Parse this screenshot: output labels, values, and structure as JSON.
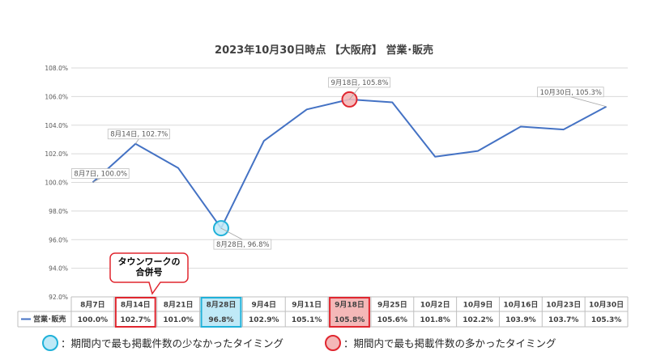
{
  "chart_data": {
    "type": "line",
    "title": "2023年10月30日時点 【大阪府】 営業･販売",
    "ylim": [
      92.0,
      108.0
    ],
    "yticks": [
      "92.0%",
      "94.0%",
      "96.0%",
      "98.0%",
      "100.0%",
      "102.0%",
      "104.0%",
      "106.0%",
      "108.0%"
    ],
    "ytick_values": [
      92,
      94,
      96,
      98,
      100,
      102,
      104,
      106,
      108
    ],
    "grid": true,
    "categories": [
      "8月7日",
      "8月14日",
      "8月21日",
      "8月28日",
      "9月4日",
      "9月11日",
      "9月18日",
      "9月25日",
      "10月2日",
      "10月9日",
      "10月16日",
      "10月23日",
      "10月30日"
    ],
    "series": [
      {
        "name": "営業･販売",
        "color": "#4472c4",
        "values": [
          100.0,
          102.7,
          101.0,
          96.8,
          102.9,
          105.1,
          105.8,
          105.6,
          101.8,
          102.2,
          103.9,
          103.7,
          105.3
        ],
        "value_labels": [
          "100.0%",
          "102.7%",
          "101.0%",
          "96.8%",
          "102.9%",
          "105.1%",
          "105.8%",
          "105.6%",
          "101.8%",
          "102.2%",
          "103.9%",
          "103.7%",
          "105.3%"
        ]
      }
    ],
    "data_labels": [
      {
        "index": 0,
        "text": "8月7日, 100.0%"
      },
      {
        "index": 1,
        "text": "8月14日, 102.7%"
      },
      {
        "index": 3,
        "text": "8月28日, 96.8%"
      },
      {
        "index": 6,
        "text": "9月18日, 105.8%"
      },
      {
        "index": 12,
        "text": "10月30日, 105.3%"
      }
    ],
    "highlight_min_index": 3,
    "highlight_max_index": 6,
    "highlight_box_index": 1,
    "colors": {
      "min_fill": "#bfe9f7",
      "min_stroke": "#1fb1d9",
      "max_fill": "#f4b8b8",
      "max_stroke": "#e0262f",
      "box_stroke": "#e0262f"
    },
    "callout": {
      "lines": [
        "タウンワークの",
        "合併号"
      ]
    },
    "legend": [
      {
        "kind": "min",
        "text": "：期間内で最も掲載件数の少なかったタイミング"
      },
      {
        "kind": "max",
        "text": "：期間内で最も掲載件数の多かったタイミング"
      }
    ]
  }
}
